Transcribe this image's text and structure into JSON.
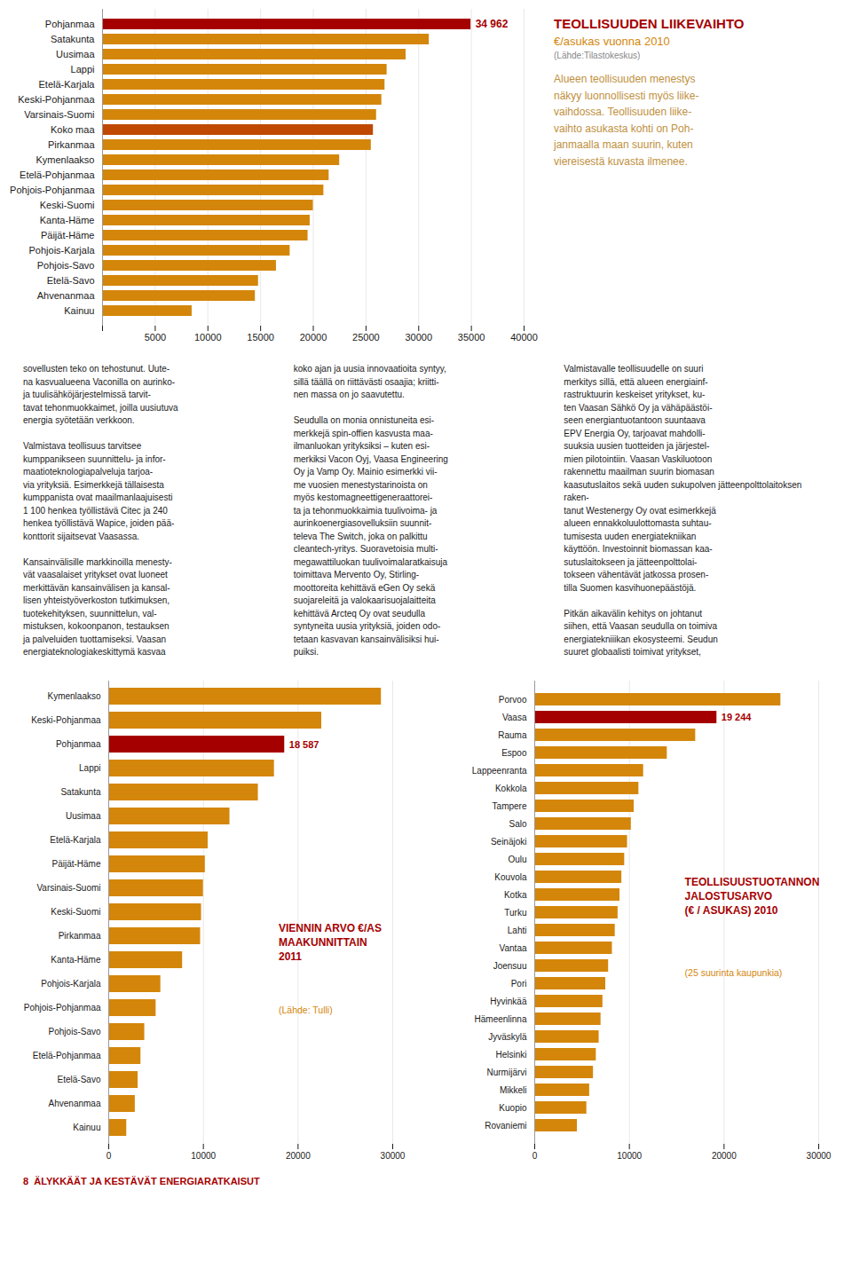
{
  "chart_data": [
    {
      "type": "bar",
      "orientation": "horizontal",
      "title": "TEOLLISUUDEN LIIKEVAIHTO",
      "subtitle": "€/asukas vuonna 2010",
      "annotations": [
        {
          "text": "(Lähde:Tilastokeskus)"
        },
        {
          "text": "Alueen teollisuuden menestys\nnäkyy luonnollisesti myös liike-\nvaihdossa. Teollisuuden liike-\nvaihto asukasta kohti on Poh-\njanmaalla maan suurin, kuten\nviereisestä kuvasta ilmenee."
        },
        {
          "text": "34 962",
          "category": "Pohjanmaa",
          "value": 34962,
          "color": "#A50000"
        }
      ],
      "categories": [
        "Pohjanmaa",
        "Satakunta",
        "Uusimaa",
        "Lappi",
        "Etelä-Karjala",
        "Keski-Pohjanmaa",
        "Varsinais-Suomi",
        "Koko maa",
        "Pirkanmaa",
        "Kymenlaakso",
        "Etelä-Pohjanmaa",
        "Pohjois-Pohjanmaa",
        "Keski-Suomi",
        "Kanta-Häme",
        "Päijät-Häme",
        "Pohjois-Karjala",
        "Pohjois-Savo",
        "Etelä-Savo",
        "Ahvenanmaa",
        "Kainuu"
      ],
      "values": [
        34962,
        31000,
        28800,
        27000,
        26800,
        26500,
        26000,
        25700,
        25500,
        22500,
        21500,
        21000,
        20000,
        19700,
        19500,
        17800,
        16500,
        14800,
        14500,
        8500
      ],
      "colors": [
        "#A50000",
        "#D4860A",
        "#D4860A",
        "#D4860A",
        "#D4860A",
        "#D4860A",
        "#D4860A",
        "#C04800",
        "#D4860A",
        "#D4860A",
        "#D4860A",
        "#D4860A",
        "#D4860A",
        "#D4860A",
        "#D4860A",
        "#D4860A",
        "#D4860A",
        "#D4860A",
        "#D4860A",
        "#D4860A"
      ],
      "xlim": [
        0,
        40000
      ],
      "xticks": [
        {
          "value": 0,
          "label": ""
        },
        5000,
        10000,
        15000,
        20000,
        25000,
        30000,
        35000,
        40000
      ],
      "grid": true
    },
    {
      "type": "bar",
      "orientation": "horizontal",
      "title": "VIENNIN ARVO €/AS\nMAAKUNNITTAIN\n2011",
      "subtitle": "(Lähde: Tulli)",
      "annotations": [
        {
          "text": "18 587",
          "category": "Pohjanmaa",
          "value": 18587,
          "color": "#A50000"
        }
      ],
      "categories": [
        "Kymenlaakso",
        "Keski-Pohjanmaa",
        "Pohjanmaa",
        "Lappi",
        "Satakunta",
        "Uusimaa",
        "Etelä-Karjala",
        "Päijät-Häme",
        "Varsinais-Suomi",
        "Keski-Suomi",
        "Pirkanmaa",
        "Kanta-Häme",
        "Pohjois-Karjala",
        "Pohjois-Pohjanmaa",
        "Pohjois-Savo",
        "Etelä-Pohjanmaa",
        "Etelä-Savo",
        "Ahvenanmaa",
        "Kainuu"
      ],
      "values": [
        28800,
        22500,
        18587,
        17500,
        15800,
        12800,
        10500,
        10200,
        10000,
        9800,
        9700,
        7800,
        5500,
        5000,
        3800,
        3400,
        3100,
        2800,
        1900
      ],
      "colors": [
        "#D4860A",
        "#D4860A",
        "#A50000",
        "#D4860A",
        "#D4860A",
        "#D4860A",
        "#D4860A",
        "#D4860A",
        "#D4860A",
        "#D4860A",
        "#D4860A",
        "#D4860A",
        "#D4860A",
        "#D4860A",
        "#D4860A",
        "#D4860A",
        "#D4860A",
        "#D4860A",
        "#D4860A"
      ],
      "xlim": [
        0,
        30000
      ],
      "xticks": [
        0,
        10000,
        20000,
        30000
      ],
      "grid": true
    },
    {
      "type": "bar",
      "orientation": "horizontal",
      "title": "TEOLLISUUSTUOTANNON\nJALOSTUSARVO\n(€ / ASUKAS) 2010",
      "subtitle": "(25 suurinta kaupunkia)",
      "annotations": [
        {
          "text": "19 244",
          "category": "Vaasa",
          "value": 19244,
          "color": "#A50000"
        }
      ],
      "categories": [
        "Porvoo",
        "Vaasa",
        "Rauma",
        "Espoo",
        "Lappeenranta",
        "Kokkola",
        "Tampere",
        "Salo",
        "Seinäjoki",
        "Oulu",
        "Kouvola",
        "Kotka",
        "Turku",
        "Lahti",
        "Vantaa",
        "Joensuu",
        "Pori",
        "Hyvinkää",
        "Hämeenlinna",
        "Jyväskylä",
        "Helsinki",
        "Nurmijärvi",
        "Mikkeli",
        "Kuopio",
        "Rovaniemi"
      ],
      "values": [
        26000,
        19244,
        17000,
        14000,
        11500,
        11000,
        10500,
        10200,
        9800,
        9500,
        9200,
        9000,
        8800,
        8500,
        8200,
        7800,
        7500,
        7200,
        7000,
        6800,
        6500,
        6200,
        5800,
        5500,
        4500
      ],
      "colors": [
        "#D4860A",
        "#A50000",
        "#D4860A",
        "#D4860A",
        "#D4860A",
        "#D4860A",
        "#D4860A",
        "#D4860A",
        "#D4860A",
        "#D4860A",
        "#D4860A",
        "#D4860A",
        "#D4860A",
        "#D4860A",
        "#D4860A",
        "#D4860A",
        "#D4860A",
        "#D4860A",
        "#D4860A",
        "#D4860A",
        "#D4860A",
        "#D4860A",
        "#D4860A",
        "#D4860A",
        "#D4860A"
      ],
      "xlim": [
        0,
        30000
      ],
      "xticks": [
        0,
        10000,
        20000,
        30000
      ],
      "grid": true
    }
  ],
  "annotations": [
    {
      "text": "sovellusten teko on tehostunut. Uute-\nna kasvualueena Vaconilla on aurinko-\nja tuulisähköjärjestelmissä tarvit-\ntavat tehonmuokkaimet, joilla uusiutuva\nenergia syötetään verkkoon.\n\nValmistava teollisuus tarvitsee\nkumppanikseen suunnittelu- ja infor-\nmaatioteknologiapalveluja tarjoa-\nvia yrityksiä. Esimerkkejä tällaisesta\nkumppanista ovat maailmanlaajuisesti\n1 100 henkea työllistävä Citec ja 240\nhenkea työllistävä Wapice, joiden pää-\nkonttorit sijaitsevat Vaasassa.\n\nKansainvälisille markkinoilla menesty-\nvät vaasalaiset yritykset ovat luoneet\nmerkittävän kansainvälisen ja kansal-\nlisen yhteistyöverkoston tutkimuksen,\ntuotekehityksen, suunnittelun, val-\nmistuksen, kokoonpanon, testauksen\nja palveluiden tuottamiseksi. Vaasan\nenergiateknologiakeskittymä kasvaa"
    },
    {
      "text": "koko ajan ja uusia innovaatioita syntyy,\nsillä täällä on riittävästi osaajia; kriitti-\nnen massa on jo saavutettu.\n\nSeudulla on monia onnistuneita esi-\nmerkkejä spin-offien kasvusta maa-\nilmanluokan yrityksiksi – kuten esi-\nmerkiksi Vacon Oyj, Vaasa Engineering\nOy ja Vamp Oy. Mainio esimerkki vii-\nme vuosien menestystarinoista on\nmyös kestomagneettigeneraattorei-\nta ja tehonmuokkaimia tuulivoima- ja\naurinkoenergiasovelluksiin suunnit-\nteleva The Switch, joka on palkittu\ncleantech-yritys. Suoravetoisia multi-\nmegawattiluokan tuulivoimalaratkaisuja\ntoimittava Mervento Oy, Stirling-\nmoottoreita kehittävä eGen Oy sekä\nsuojareleitä ja valokaarisuojalaitteita\nkehittävä Arcteq Oy ovat seudulla\nsyntyneita uusia yrityksiä, joiden odo-\ntetaan kasvavan kansainvälisiksi hui-\npuiksi."
    },
    {
      "text": "Valmistavalle teollisuudelle on suuri\nmerkitys sillä, että alueen energiainf-\nrastruktuurin keskeiset yritykset, ku-\nten Vaasan Sähkö Oy ja vähäpäästöi-\nseen energiantuotantoon suuntaava\nEPV Energia Oy, tarjoavat mahdolli-\nsuuksia uusien tuotteiden ja järjestel-\nmien pilotointiin. Vaasan Vaskiluotoon\nrakennettu maailman suurin biomasan\nkaasutuslaitos sekä uuden sukupolven jätteenpolttolaitoksen raken-\ntanut Westenergy Oy ovat esimerkkejä\nalueen ennakkoluulottomasta suhtau-\ntumisesta uuden energiatekniikan\nkäyttöön. Investoinnit biomassan kaa-\nsutuslaitokseen ja jätteenpolttolai-\ntokseen vähentävät jatkossa prosen-\ntilla Suomen kasvihuonepäästöjä.\n\nPitkän aikavälin kehitys on johtanut\nsiihen, että Vaasan seudulla on toimiva\nenergiatekniiikan ekosysteemi. Seudun\nsuuret globaalisti toimivat yritykset,"
    },
    {
      "text": "8  ÄLYKKÄÄT JA KESTÄVÄT ENERGIARATKAISUT"
    }
  ]
}
